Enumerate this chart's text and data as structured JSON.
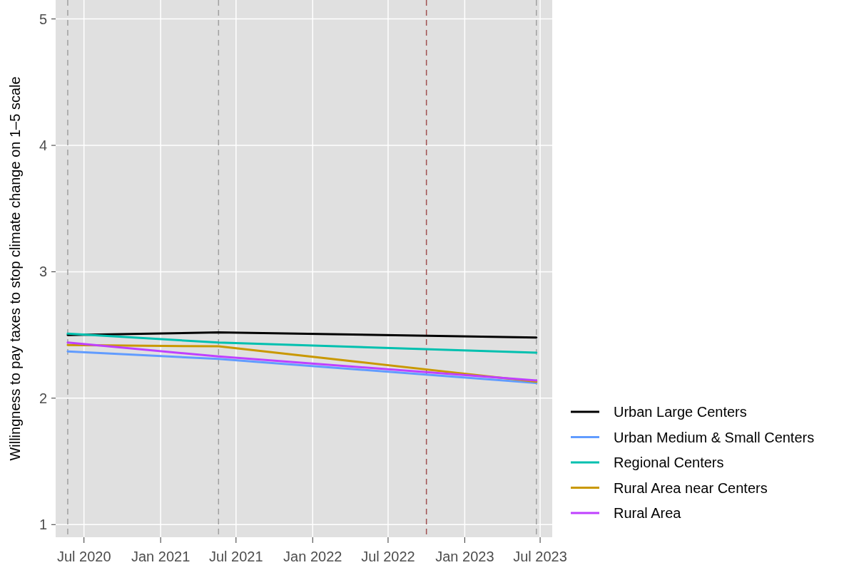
{
  "chart_data": {
    "type": "line",
    "ylabel": "Willingness to pay taxes to stop climate change on 1–5 scale",
    "x": [
      "2020-05-23",
      "2021-05-20",
      "2023-06-22"
    ],
    "xlim": [
      "2020-04-24",
      "2023-07-30"
    ],
    "xticks": [
      {
        "value": "2020-07-01",
        "label": "Jul 2020"
      },
      {
        "value": "2021-01-01",
        "label": "Jan 2021"
      },
      {
        "value": "2021-07-01",
        "label": "Jul 2021"
      },
      {
        "value": "2022-01-01",
        "label": "Jan 2022"
      },
      {
        "value": "2022-07-01",
        "label": "Jul 2022"
      },
      {
        "value": "2023-01-01",
        "label": "Jan 2023"
      },
      {
        "value": "2023-07-01",
        "label": "Jul 2023"
      }
    ],
    "ylim": [
      0.9,
      5.15
    ],
    "yticks": [
      1,
      2,
      3,
      4,
      5
    ],
    "series": [
      {
        "name": "Urban Large Centers",
        "color": "#000000",
        "values": [
          2.5,
          2.52,
          2.48
        ]
      },
      {
        "name": "Urban Medium & Small Centers",
        "color": "#619cff",
        "values": [
          2.37,
          2.31,
          2.12
        ]
      },
      {
        "name": "Regional Centers",
        "color": "#00c0af",
        "values": [
          2.51,
          2.44,
          2.36
        ]
      },
      {
        "name": "Rural Area near Centers",
        "color": "#c99800",
        "values": [
          2.42,
          2.41,
          2.13
        ]
      },
      {
        "name": "Rural Area",
        "color": "#bf40ff",
        "values": [
          2.44,
          2.33,
          2.14
        ]
      }
    ],
    "ref_lines": [
      {
        "axis": "x",
        "value": "2020-05-23",
        "color": "#a0a0a0",
        "line_style": "dashed"
      },
      {
        "axis": "x",
        "value": "2021-05-20",
        "color": "#a0a0a0",
        "line_style": "dashed"
      },
      {
        "axis": "x",
        "value": "2022-10-01",
        "color": "#a05050",
        "line_style": "dashed"
      },
      {
        "axis": "x",
        "value": "2023-06-22",
        "color": "#a0a0a0",
        "line_style": "dashed"
      }
    ],
    "grid": true,
    "legend": "right",
    "line_style": "solid",
    "marker": "none"
  }
}
